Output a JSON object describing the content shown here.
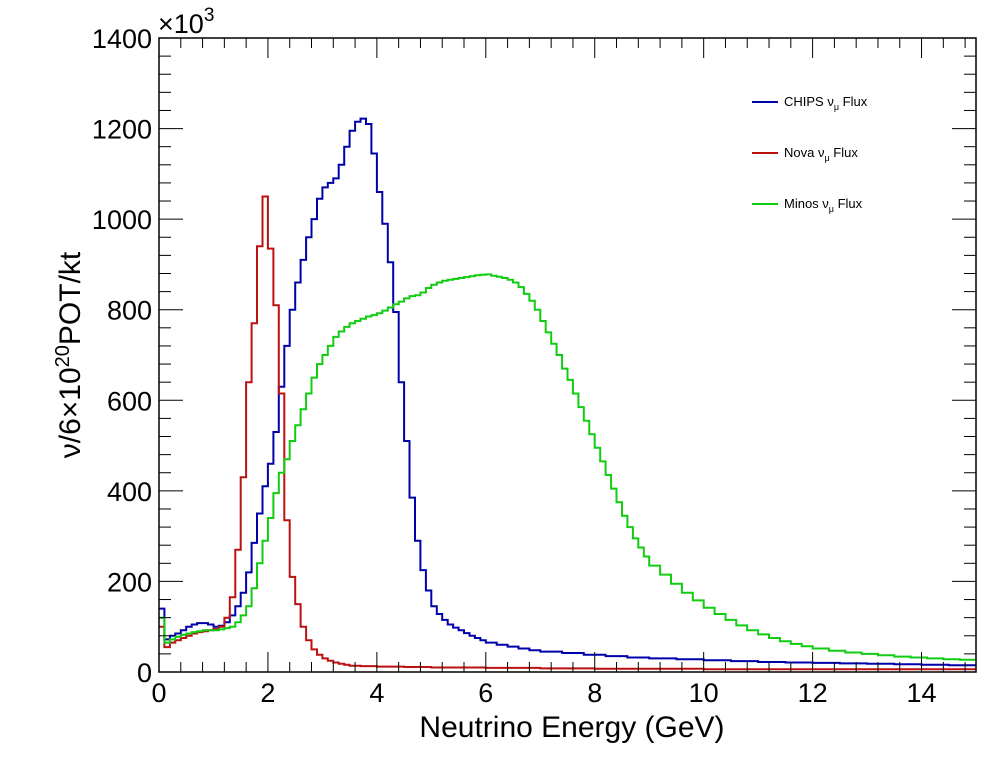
{
  "chart_data": {
    "type": "line",
    "step": true,
    "xlim": [
      0,
      15
    ],
    "ylim": [
      0,
      1400
    ],
    "y_multiplier_label": "×10",
    "y_multiplier_exp": "3",
    "x_ticks": [
      0,
      2,
      4,
      6,
      8,
      10,
      12,
      14
    ],
    "y_ticks": [
      0,
      200,
      400,
      600,
      800,
      1000,
      1200,
      1400
    ],
    "xlabel": "Neutrino Energy (GeV)",
    "ylabel": {
      "prefix": "ν/6×10",
      "sup": "20",
      "suffix": "POT/kt"
    },
    "grid": false,
    "legend_position": "top-right",
    "series": [
      {
        "name": "CHIPS ν",
        "sub": "μ",
        "tail": " Flux",
        "color": "#0000aa",
        "points": [
          [
            0.0,
            140
          ],
          [
            0.1,
            72
          ],
          [
            0.2,
            80
          ],
          [
            0.3,
            85
          ],
          [
            0.4,
            92
          ],
          [
            0.5,
            100
          ],
          [
            0.6,
            105
          ],
          [
            0.7,
            108
          ],
          [
            0.8,
            108
          ],
          [
            0.9,
            105
          ],
          [
            1.0,
            100
          ],
          [
            1.1,
            102
          ],
          [
            1.2,
            110
          ],
          [
            1.3,
            125
          ],
          [
            1.4,
            145
          ],
          [
            1.5,
            175
          ],
          [
            1.6,
            220
          ],
          [
            1.7,
            285
          ],
          [
            1.8,
            350
          ],
          [
            1.9,
            410
          ],
          [
            2.0,
            460
          ],
          [
            2.1,
            530
          ],
          [
            2.2,
            630
          ],
          [
            2.3,
            720
          ],
          [
            2.4,
            800
          ],
          [
            2.5,
            860
          ],
          [
            2.6,
            910
          ],
          [
            2.7,
            960
          ],
          [
            2.8,
            1000
          ],
          [
            2.9,
            1045
          ],
          [
            3.0,
            1070
          ],
          [
            3.1,
            1080
          ],
          [
            3.2,
            1090
          ],
          [
            3.3,
            1120
          ],
          [
            3.4,
            1160
          ],
          [
            3.5,
            1195
          ],
          [
            3.6,
            1215
          ],
          [
            3.7,
            1222
          ],
          [
            3.8,
            1210
          ],
          [
            3.9,
            1145
          ],
          [
            4.0,
            1060
          ],
          [
            4.1,
            990
          ],
          [
            4.2,
            905
          ],
          [
            4.3,
            795
          ],
          [
            4.4,
            640
          ],
          [
            4.5,
            510
          ],
          [
            4.6,
            385
          ],
          [
            4.7,
            290
          ],
          [
            4.8,
            225
          ],
          [
            4.9,
            180
          ],
          [
            5.0,
            145
          ],
          [
            5.1,
            128
          ],
          [
            5.2,
            115
          ],
          [
            5.3,
            105
          ],
          [
            5.4,
            98
          ],
          [
            5.5,
            92
          ],
          [
            5.6,
            86
          ],
          [
            5.7,
            80
          ],
          [
            5.8,
            75
          ],
          [
            5.9,
            70
          ],
          [
            6.0,
            65
          ],
          [
            6.2,
            60
          ],
          [
            6.4,
            56
          ],
          [
            6.6,
            52
          ],
          [
            6.8,
            48
          ],
          [
            7.0,
            45
          ],
          [
            7.4,
            42
          ],
          [
            7.8,
            38
          ],
          [
            8.2,
            35
          ],
          [
            8.6,
            32
          ],
          [
            9.0,
            30
          ],
          [
            9.5,
            28
          ],
          [
            10.0,
            26
          ],
          [
            10.5,
            24
          ],
          [
            11.0,
            22
          ],
          [
            11.5,
            21
          ],
          [
            12.0,
            20
          ],
          [
            12.5,
            19
          ],
          [
            13.0,
            18
          ],
          [
            13.5,
            17
          ],
          [
            14.0,
            16
          ],
          [
            14.5,
            15
          ],
          [
            15.0,
            15
          ]
        ]
      },
      {
        "name": "Nova ν",
        "sub": "μ",
        "tail": " Flux",
        "color": "#bb1111",
        "points": [
          [
            0.0,
            100
          ],
          [
            0.1,
            55
          ],
          [
            0.2,
            65
          ],
          [
            0.3,
            70
          ],
          [
            0.4,
            75
          ],
          [
            0.5,
            80
          ],
          [
            0.6,
            85
          ],
          [
            0.7,
            88
          ],
          [
            0.8,
            90
          ],
          [
            0.9,
            92
          ],
          [
            1.0,
            95
          ],
          [
            1.1,
            100
          ],
          [
            1.2,
            120
          ],
          [
            1.3,
            165
          ],
          [
            1.4,
            270
          ],
          [
            1.5,
            430
          ],
          [
            1.6,
            640
          ],
          [
            1.7,
            770
          ],
          [
            1.8,
            940
          ],
          [
            1.9,
            1050
          ],
          [
            2.0,
            935
          ],
          [
            2.1,
            810
          ],
          [
            2.2,
            615
          ],
          [
            2.3,
            335
          ],
          [
            2.4,
            210
          ],
          [
            2.5,
            150
          ],
          [
            2.6,
            100
          ],
          [
            2.7,
            70
          ],
          [
            2.8,
            50
          ],
          [
            2.9,
            38
          ],
          [
            3.0,
            30
          ],
          [
            3.1,
            25
          ],
          [
            3.2,
            21
          ],
          [
            3.3,
            18
          ],
          [
            3.4,
            16
          ],
          [
            3.5,
            14
          ],
          [
            3.7,
            13
          ],
          [
            4.0,
            12
          ],
          [
            4.5,
            11
          ],
          [
            5.0,
            10
          ],
          [
            6.0,
            9
          ],
          [
            7.0,
            8
          ],
          [
            8.0,
            7
          ],
          [
            9.0,
            7
          ],
          [
            10.0,
            6
          ],
          [
            11.0,
            6
          ],
          [
            12.0,
            6
          ],
          [
            13.0,
            6
          ],
          [
            14.0,
            6
          ],
          [
            15.0,
            6
          ]
        ]
      },
      {
        "name": "Minos ν",
        "sub": "μ",
        "tail": " Flux",
        "color": "#11cc11",
        "points": [
          [
            0.0,
            120
          ],
          [
            0.1,
            65
          ],
          [
            0.2,
            72
          ],
          [
            0.3,
            78
          ],
          [
            0.4,
            82
          ],
          [
            0.5,
            85
          ],
          [
            0.6,
            88
          ],
          [
            0.7,
            90
          ],
          [
            0.8,
            92
          ],
          [
            0.9,
            92
          ],
          [
            1.0,
            92
          ],
          [
            1.1,
            94
          ],
          [
            1.2,
            97
          ],
          [
            1.3,
            100
          ],
          [
            1.4,
            110
          ],
          [
            1.5,
            125
          ],
          [
            1.6,
            145
          ],
          [
            1.7,
            185
          ],
          [
            1.8,
            240
          ],
          [
            1.9,
            290
          ],
          [
            2.0,
            340
          ],
          [
            2.1,
            395
          ],
          [
            2.2,
            440
          ],
          [
            2.3,
            470
          ],
          [
            2.4,
            510
          ],
          [
            2.5,
            545
          ],
          [
            2.6,
            580
          ],
          [
            2.7,
            615
          ],
          [
            2.8,
            650
          ],
          [
            2.9,
            680
          ],
          [
            3.0,
            700
          ],
          [
            3.1,
            720
          ],
          [
            3.2,
            740
          ],
          [
            3.3,
            752
          ],
          [
            3.4,
            762
          ],
          [
            3.5,
            770
          ],
          [
            3.6,
            775
          ],
          [
            3.7,
            780
          ],
          [
            3.8,
            785
          ],
          [
            3.9,
            788
          ],
          [
            4.0,
            792
          ],
          [
            4.1,
            798
          ],
          [
            4.2,
            805
          ],
          [
            4.3,
            812
          ],
          [
            4.4,
            818
          ],
          [
            4.5,
            825
          ],
          [
            4.6,
            830
          ],
          [
            4.7,
            832
          ],
          [
            4.8,
            838
          ],
          [
            4.9,
            848
          ],
          [
            5.0,
            855
          ],
          [
            5.1,
            860
          ],
          [
            5.2,
            864
          ],
          [
            5.3,
            866
          ],
          [
            5.4,
            868
          ],
          [
            5.5,
            870
          ],
          [
            5.6,
            872
          ],
          [
            5.7,
            874
          ],
          [
            5.8,
            876
          ],
          [
            5.9,
            877
          ],
          [
            6.0,
            878
          ],
          [
            6.1,
            875
          ],
          [
            6.2,
            873
          ],
          [
            6.3,
            870
          ],
          [
            6.4,
            866
          ],
          [
            6.5,
            860
          ],
          [
            6.6,
            850
          ],
          [
            6.7,
            835
          ],
          [
            6.8,
            820
          ],
          [
            6.9,
            800
          ],
          [
            7.0,
            775
          ],
          [
            7.1,
            750
          ],
          [
            7.2,
            725
          ],
          [
            7.3,
            700
          ],
          [
            7.4,
            670
          ],
          [
            7.5,
            645
          ],
          [
            7.6,
            615
          ],
          [
            7.7,
            585
          ],
          [
            7.8,
            555
          ],
          [
            7.9,
            525
          ],
          [
            8.0,
            495
          ],
          [
            8.1,
            465
          ],
          [
            8.2,
            435
          ],
          [
            8.3,
            405
          ],
          [
            8.4,
            375
          ],
          [
            8.5,
            345
          ],
          [
            8.6,
            320
          ],
          [
            8.7,
            295
          ],
          [
            8.8,
            275
          ],
          [
            8.9,
            255
          ],
          [
            9.0,
            235
          ],
          [
            9.2,
            215
          ],
          [
            9.4,
            195
          ],
          [
            9.6,
            175
          ],
          [
            9.8,
            158
          ],
          [
            10.0,
            142
          ],
          [
            10.2,
            128
          ],
          [
            10.4,
            115
          ],
          [
            10.6,
            103
          ],
          [
            10.8,
            92
          ],
          [
            11.0,
            83
          ],
          [
            11.2,
            75
          ],
          [
            11.4,
            68
          ],
          [
            11.6,
            62
          ],
          [
            11.8,
            57
          ],
          [
            12.0,
            52
          ],
          [
            12.3,
            47
          ],
          [
            12.6,
            43
          ],
          [
            12.9,
            40
          ],
          [
            13.2,
            37
          ],
          [
            13.5,
            34
          ],
          [
            13.8,
            32
          ],
          [
            14.1,
            30
          ],
          [
            14.4,
            28
          ],
          [
            14.7,
            27
          ],
          [
            15.0,
            26
          ]
        ]
      }
    ]
  }
}
